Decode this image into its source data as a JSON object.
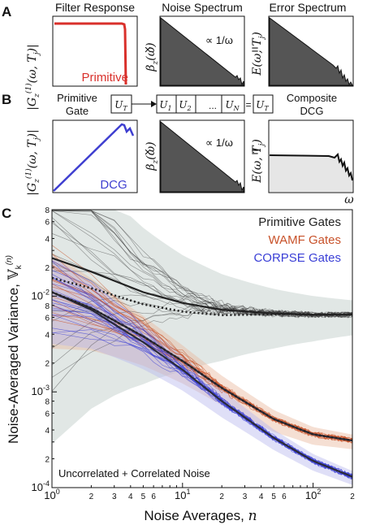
{
  "panel_a": {
    "letter": "A",
    "titles": [
      "Filter Response",
      "Noise Spectrum",
      "Error Spectrum"
    ],
    "ylabel_filter": "|G_z^(1)(ω, T_j)|",
    "ylabel_noise": "β_z(ω)",
    "ylabel_error": "E(ω, T_j)",
    "filter_label": "Primitive",
    "slope_label": "∝ 1/ω",
    "times": "×",
    "equals": "="
  },
  "panel_b": {
    "letter": "B",
    "left_label": "Primitive\nGate",
    "right_label": "Composite\nDCG",
    "ut": "U_T",
    "seq": [
      "U_1",
      "U_2",
      "...",
      "U_N"
    ],
    "eq": "=",
    "filter_label": "DCG",
    "xlabel": "ω",
    "slope_label": "∝ 1/ω",
    "times": "×",
    "equals": "="
  },
  "panel_c": {
    "letter": "C",
    "legend": [
      "Primitive Gates",
      "WAMF Gates",
      "CORPSE Gates"
    ],
    "annotation": "Uncorrelated + Correlated Noise",
    "xlabel": "Noise Averages, n",
    "ylabel": "Noise-Averaged Variance, V_k^(n)"
  },
  "colors": {
    "primitive": "#333333",
    "wamf": "#c8522a",
    "corpse": "#3a3fd6",
    "red_filter": "#d9302b",
    "blue_filter": "#3f3fd0",
    "spectrum_fill": "#555555",
    "error_fill_light": "#e6e6e6"
  },
  "chart_data": {
    "type": "line",
    "xscale": "log",
    "yscale": "log",
    "xlim": [
      1,
      200
    ],
    "ylim": [
      0.0001,
      0.08
    ],
    "x_tick_labels": [
      "10^0",
      "2",
      "3",
      "4",
      "5",
      "6",
      "10^1",
      "2",
      "3",
      "4",
      "5",
      "6",
      "10^2",
      "2"
    ],
    "y_tick_labels": [
      "8",
      "6",
      "4",
      "2",
      "10^-2",
      "8",
      "6",
      "4",
      "2",
      "10^-3",
      "8",
      "6",
      "4",
      "2",
      "10^-4"
    ],
    "series": [
      {
        "name": "Primitive Gates",
        "x": [
          1,
          2,
          5,
          10,
          20,
          50,
          100,
          200
        ],
        "y": [
          0.025,
          0.018,
          0.011,
          0.0085,
          0.0072,
          0.0066,
          0.0064,
          0.0064
        ]
      },
      {
        "name": "WAMF Gates",
        "x": [
          1,
          2,
          5,
          10,
          20,
          50,
          100,
          200
        ],
        "y": [
          0.011,
          0.0075,
          0.0038,
          0.0021,
          0.0011,
          0.00052,
          0.00036,
          0.00031
        ]
      },
      {
        "name": "CORPSE Gates",
        "x": [
          1,
          2,
          5,
          10,
          20,
          50,
          100,
          200
        ],
        "y": [
          0.011,
          0.0072,
          0.0033,
          0.0017,
          0.0008,
          0.00033,
          0.00019,
          0.00013
        ]
      }
    ]
  }
}
